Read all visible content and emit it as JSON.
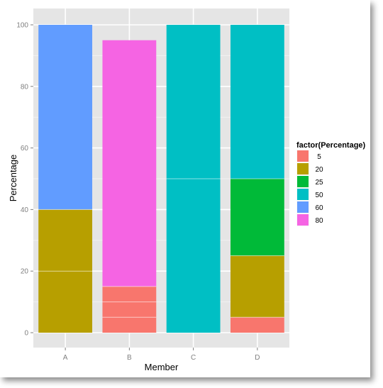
{
  "chart_data": {
    "type": "bar",
    "stacked": true,
    "categories": [
      "A",
      "B",
      "C",
      "D"
    ],
    "xlabel": "Member",
    "ylabel": "Percentage",
    "ylim": [
      0,
      100
    ],
    "yticks": [
      0,
      20,
      40,
      60,
      80,
      100
    ],
    "grid": true,
    "legend_position": "right",
    "legend": {
      "title": "factor(Percentage)",
      "entries": [
        {
          "label": "5",
          "color": "#F8766D"
        },
        {
          "label": "20",
          "color": "#B79F00"
        },
        {
          "label": "25",
          "color": "#00BA38"
        },
        {
          "label": "50",
          "color": "#00BFC4"
        },
        {
          "label": "60",
          "color": "#619CFF"
        },
        {
          "label": "80",
          "color": "#F564E3"
        }
      ]
    },
    "bars": [
      {
        "category": "A",
        "segments": [
          {
            "factor": "20",
            "value": 20
          },
          {
            "factor": "20",
            "value": 20
          },
          {
            "factor": "60",
            "value": 60
          }
        ]
      },
      {
        "category": "B",
        "segments": [
          {
            "factor": "5",
            "value": 5
          },
          {
            "factor": "5",
            "value": 5
          },
          {
            "factor": "5",
            "value": 5
          },
          {
            "factor": "80",
            "value": 80
          }
        ]
      },
      {
        "category": "C",
        "segments": [
          {
            "factor": "50",
            "value": 50
          },
          {
            "factor": "50",
            "value": 50
          }
        ]
      },
      {
        "category": "D",
        "segments": [
          {
            "factor": "5",
            "value": 5
          },
          {
            "factor": "20",
            "value": 20
          },
          {
            "factor": "25",
            "value": 25
          },
          {
            "factor": "50",
            "value": 50
          }
        ]
      }
    ],
    "colors": {
      "panel_background": "#E5E5E5",
      "grid_major": "#FFFFFF",
      "grid_minor": "#F2F2F2"
    }
  }
}
